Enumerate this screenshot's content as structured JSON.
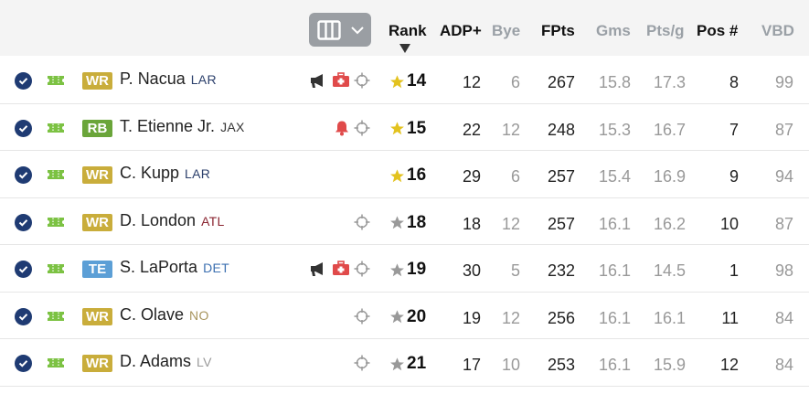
{
  "header": {
    "columns_icon": "columns-icon",
    "columns": [
      {
        "label": "Rank",
        "style": "active"
      },
      {
        "label": "ADP+",
        "style": "active"
      },
      {
        "label": "Bye",
        "style": "muted"
      },
      {
        "label": "FPts",
        "style": "active"
      },
      {
        "label": "Gms",
        "style": "muted"
      },
      {
        "label": "Pts/g",
        "style": "muted"
      },
      {
        "label": "Pos #",
        "style": "active"
      },
      {
        "label": "VBD",
        "style": "muted"
      }
    ]
  },
  "colors": {
    "WR": "#c9ad3b",
    "RB": "#6aa53a",
    "TE": "#5c9fd6",
    "team_LAR": "#2b3f6b",
    "team_JAX": "#333333",
    "team_ATL": "#8a2430",
    "team_DET": "#3b6fb0",
    "team_NO": "#a8955e",
    "team_LV": "#9a9a9a",
    "star_gold": "#e3c21e",
    "star_gray": "#999999"
  },
  "players": [
    {
      "pos": "WR",
      "name": "P. Nacua",
      "team": "LAR",
      "icons": [
        "news-megaphone-icon",
        "injury-kit-icon",
        "target-icon"
      ],
      "star": "gold",
      "rank": "14",
      "adp": "12",
      "bye": "6",
      "fpts": "267",
      "gms": "15.8",
      "ptsg": "17.3",
      "posn": "8",
      "vbd": "99"
    },
    {
      "pos": "RB",
      "name": "T. Etienne Jr.",
      "team": "JAX",
      "icons": [
        "alert-bell-icon",
        "target-icon"
      ],
      "star": "gold",
      "rank": "15",
      "adp": "22",
      "bye": "12",
      "fpts": "248",
      "gms": "15.3",
      "ptsg": "16.7",
      "posn": "7",
      "vbd": "87"
    },
    {
      "pos": "WR",
      "name": "C. Kupp",
      "team": "LAR",
      "icons": [],
      "star": "gold",
      "rank": "16",
      "adp": "29",
      "bye": "6",
      "fpts": "257",
      "gms": "15.4",
      "ptsg": "16.9",
      "posn": "9",
      "vbd": "94"
    },
    {
      "pos": "WR",
      "name": "D. London",
      "team": "ATL",
      "icons": [
        "target-icon"
      ],
      "star": "gray",
      "rank": "18",
      "adp": "18",
      "bye": "12",
      "fpts": "257",
      "gms": "16.1",
      "ptsg": "16.2",
      "posn": "10",
      "vbd": "87"
    },
    {
      "pos": "TE",
      "name": "S. LaPorta",
      "team": "DET",
      "icons": [
        "news-megaphone-icon",
        "injury-kit-icon",
        "target-icon"
      ],
      "star": "gray",
      "rank": "19",
      "adp": "30",
      "bye": "5",
      "fpts": "232",
      "gms": "16.1",
      "ptsg": "14.5",
      "posn": "1",
      "vbd": "98"
    },
    {
      "pos": "WR",
      "name": "C. Olave",
      "team": "NO",
      "icons": [
        "target-icon"
      ],
      "star": "gray",
      "rank": "20",
      "adp": "19",
      "bye": "12",
      "fpts": "256",
      "gms": "16.1",
      "ptsg": "16.1",
      "posn": "11",
      "vbd": "84"
    },
    {
      "pos": "WR",
      "name": "D. Adams",
      "team": "LV",
      "icons": [
        "target-icon"
      ],
      "star": "gray",
      "rank": "21",
      "adp": "17",
      "bye": "10",
      "fpts": "253",
      "gms": "16.1",
      "ptsg": "15.9",
      "posn": "12",
      "vbd": "84"
    }
  ]
}
